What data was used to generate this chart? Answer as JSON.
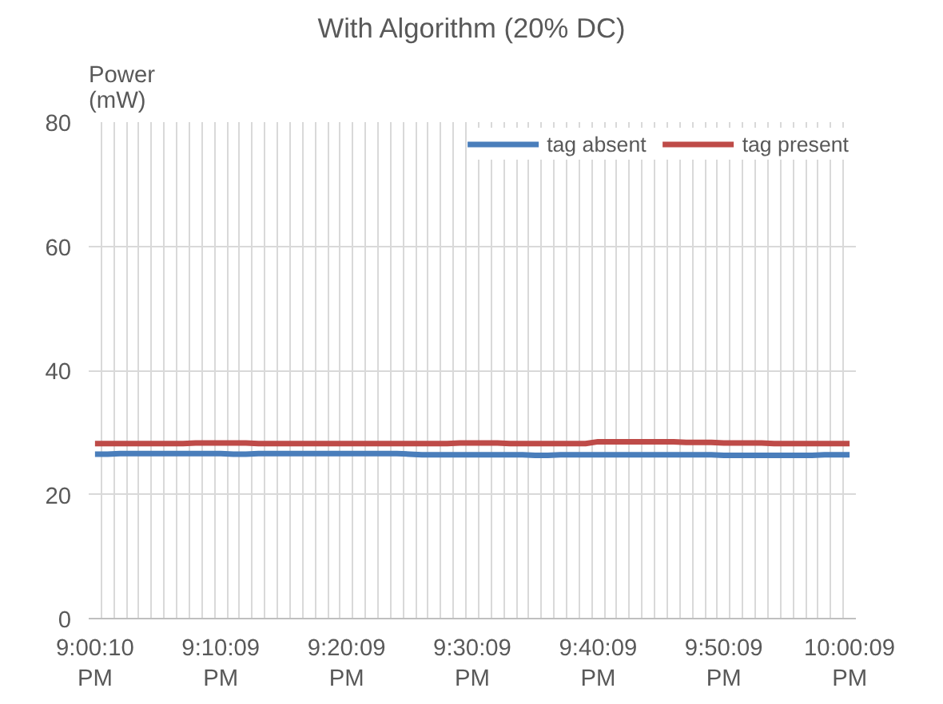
{
  "chart_data": {
    "type": "line",
    "title": "With Algorithm (20% DC)",
    "ylabel": "Power (mW)",
    "categories": [
      "9:00:10 PM",
      null,
      null,
      null,
      null,
      null,
      null,
      null,
      null,
      null,
      "9:10:09 PM",
      null,
      null,
      null,
      null,
      null,
      null,
      null,
      null,
      null,
      "9:20:09 PM",
      null,
      null,
      null,
      null,
      null,
      null,
      null,
      null,
      null,
      "9:30:09 PM",
      null,
      null,
      null,
      null,
      null,
      null,
      null,
      null,
      null,
      "9:40:09 PM",
      null,
      null,
      null,
      null,
      null,
      null,
      null,
      null,
      null,
      "9:50:09 PM",
      null,
      null,
      null,
      null,
      null,
      null,
      null,
      null,
      null,
      "10:00:09 PM"
    ],
    "series": [
      {
        "name": "tag absent",
        "color": "#4a7ebb",
        "values": [
          26.5,
          26.5,
          26.6,
          26.6,
          26.6,
          26.6,
          26.6,
          26.6,
          26.6,
          26.6,
          26.6,
          26.5,
          26.5,
          26.6,
          26.6,
          26.6,
          26.6,
          26.6,
          26.6,
          26.6,
          26.6,
          26.6,
          26.6,
          26.6,
          26.6,
          26.5,
          26.4,
          26.4,
          26.4,
          26.4,
          26.4,
          26.4,
          26.4,
          26.4,
          26.4,
          26.3,
          26.3,
          26.4,
          26.4,
          26.4,
          26.4,
          26.4,
          26.4,
          26.4,
          26.4,
          26.4,
          26.4,
          26.4,
          26.4,
          26.4,
          26.3,
          26.3,
          26.3,
          26.3,
          26.3,
          26.3,
          26.3,
          26.3,
          26.4,
          26.4,
          26.4
        ]
      },
      {
        "name": "tag present",
        "color": "#be4b48",
        "values": [
          28.2,
          28.2,
          28.2,
          28.2,
          28.2,
          28.2,
          28.2,
          28.2,
          28.3,
          28.3,
          28.3,
          28.3,
          28.3,
          28.2,
          28.2,
          28.2,
          28.2,
          28.2,
          28.2,
          28.2,
          28.2,
          28.2,
          28.2,
          28.2,
          28.2,
          28.2,
          28.2,
          28.2,
          28.2,
          28.3,
          28.3,
          28.3,
          28.3,
          28.2,
          28.2,
          28.2,
          28.2,
          28.2,
          28.2,
          28.2,
          28.5,
          28.5,
          28.5,
          28.5,
          28.5,
          28.5,
          28.5,
          28.4,
          28.4,
          28.4,
          28.3,
          28.3,
          28.3,
          28.3,
          28.2,
          28.2,
          28.2,
          28.2,
          28.2,
          28.2,
          28.2
        ]
      }
    ],
    "ylim": [
      0,
      80
    ],
    "yticks": [
      0,
      20,
      40,
      60,
      80
    ],
    "grid": true,
    "legend": "top right",
    "marker": "none",
    "line_style": "solid"
  }
}
